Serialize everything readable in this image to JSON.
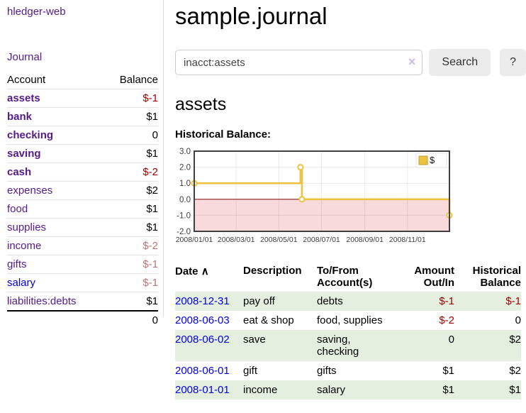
{
  "app": {
    "brand": "hledger-web",
    "nav_journal": "Journal"
  },
  "colors": {
    "link_visited_purple": "#551A8B",
    "link_blue": "#0000E0",
    "negative_red": "#a40000",
    "negative_muted_rose": "#bd7272",
    "row_green": "#e4efe0",
    "series_gold": "#edc240",
    "negative_zone_pink": "#f9dada",
    "zero_line_maroon": "#8b1f1f"
  },
  "sidebar": {
    "headers": {
      "account": "Account",
      "balance": "Balance"
    },
    "rows": [
      {
        "account": "assets",
        "balance": "$-1"
      },
      {
        "account": "bank",
        "balance": "$1"
      },
      {
        "account": "checking",
        "balance": "0"
      },
      {
        "account": "saving",
        "balance": "$1"
      },
      {
        "account": "cash",
        "balance": "$-2"
      },
      {
        "account": "expenses",
        "balance": "$2"
      },
      {
        "account": "food",
        "balance": "$1"
      },
      {
        "account": "supplies",
        "balance": "$1"
      },
      {
        "account": "income",
        "balance": "$-2"
      },
      {
        "account": "gifts",
        "balance": "$-1"
      },
      {
        "account": "salary",
        "balance": "$-1"
      },
      {
        "account": "liabilities:debts",
        "balance": "$1"
      }
    ],
    "total": "0"
  },
  "main": {
    "title": "sample.journal",
    "search": {
      "value": "inacct:assets",
      "clear_icon": "×",
      "search_label": "Search",
      "help_label": "?"
    },
    "account_title": "assets",
    "chart_label": "Historical Balance:",
    "register": {
      "sort_icon": "∧",
      "headers": {
        "date": "Date",
        "description": "Description",
        "accounts": "To/From Account(s)",
        "amount": "Amount Out/In",
        "balance": "Historical Balance"
      },
      "rows": [
        {
          "date": "2008-12-31",
          "description": "pay off",
          "accounts": "debts",
          "amount": "$-1",
          "balance": "$-1"
        },
        {
          "date": "2008-06-03",
          "description": "eat & shop",
          "accounts": "food, supplies",
          "amount": "$-2",
          "balance": "0"
        },
        {
          "date": "2008-06-02",
          "description": "save",
          "accounts": "saving, checking",
          "amount": "0",
          "balance": "$2"
        },
        {
          "date": "2008-06-01",
          "description": "gift",
          "accounts": "gifts",
          "amount": "$1",
          "balance": "$2"
        },
        {
          "date": "2008-01-01",
          "description": "income",
          "accounts": "salary",
          "amount": "$1",
          "balance": "$1"
        }
      ]
    }
  },
  "chart_data": {
    "type": "line",
    "step": true,
    "title": "Historical Balance:",
    "ylim": [
      -2,
      3
    ],
    "yticks": [
      3.0,
      2.0,
      1.0,
      0.0,
      -1.0,
      -2.0
    ],
    "x_range": [
      "2008-01-01",
      "2008-12-31"
    ],
    "xticks": [
      "2008/01/01",
      "2008/03/01",
      "2008/05/01",
      "2008/07/01",
      "2008/09/01",
      "2008/11/01"
    ],
    "series": [
      {
        "name": "$",
        "color": "#edc240",
        "points": [
          [
            "2008-01-01",
            1
          ],
          [
            "2008-06-01",
            2
          ],
          [
            "2008-06-03",
            0
          ],
          [
            "2008-12-31",
            -1
          ]
        ]
      }
    ],
    "grid": true,
    "legend_position": "top-right",
    "negative_fill": "#f9dada",
    "zero_line_color": "#8b1f1f"
  }
}
